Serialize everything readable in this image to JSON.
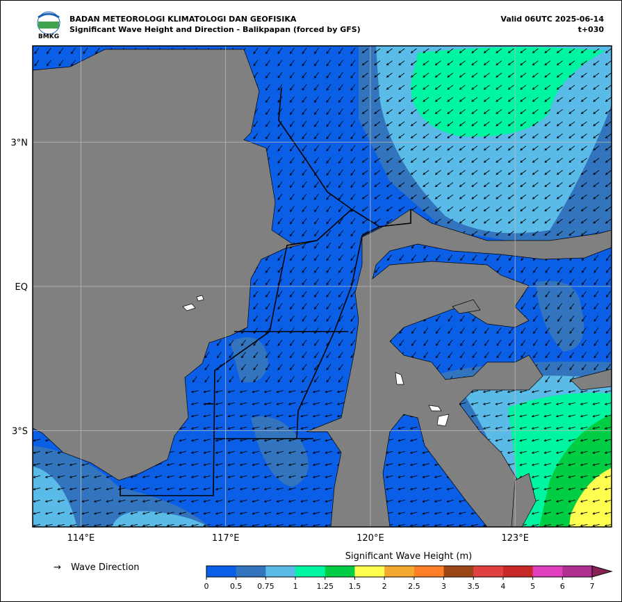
{
  "header": {
    "org": "BADAN METEOROLOGI KLIMATOLOGI DAN GEOFISIKA",
    "title": "Significant Wave Height and Direction - Balikpapan (forced by GFS)",
    "valid": "Valid 06UTC 2025-06-14",
    "lead": "t+030",
    "logo_text": "BMKG"
  },
  "map": {
    "xlim": [
      113,
      125
    ],
    "ylim": [
      -5,
      5
    ],
    "xticks": [
      {
        "value": 114,
        "label": "114°E"
      },
      {
        "value": 117,
        "label": "117°E"
      },
      {
        "value": 120,
        "label": "120°E"
      },
      {
        "value": 123,
        "label": "123°E"
      }
    ],
    "yticks": [
      {
        "value": 3,
        "label": "3°N"
      },
      {
        "value": 0,
        "label": "EQ"
      },
      {
        "value": -3,
        "label": "3°S"
      }
    ],
    "grid": true
  },
  "legend": {
    "arrow": "→",
    "label": "Wave Direction"
  },
  "colorbar": {
    "title": "Significant Wave Height (m)",
    "levels": [
      0,
      0.5,
      0.75,
      1,
      1.25,
      1.5,
      2,
      2.5,
      3,
      3.5,
      4,
      5,
      6,
      7
    ],
    "colors": [
      "#0a5fe6",
      "#3374be",
      "#5bbbe8",
      "#00f5a0",
      "#00cc44",
      "#ffff50",
      "#f5a830",
      "#ff7f27",
      "#9b4514",
      "#e04040",
      "#c82828",
      "#e040c0",
      "#b03090",
      "#882255"
    ],
    "extend": "max"
  }
}
